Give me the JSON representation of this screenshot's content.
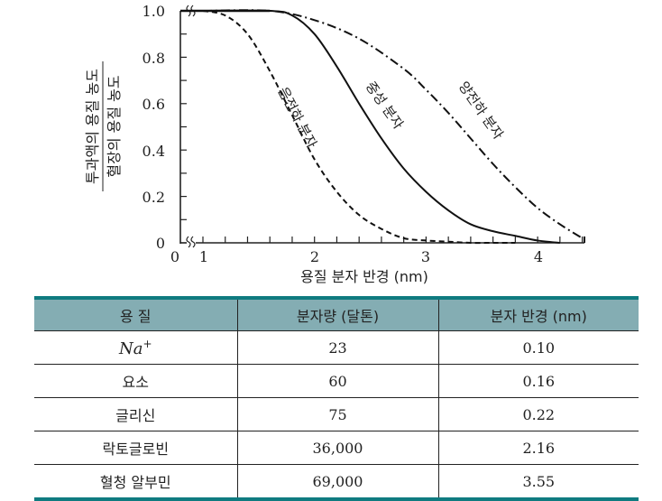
{
  "chart_data": {
    "type": "line",
    "title": "",
    "xlabel": "용질 분자 반경 (nm)",
    "ylabel_numerator": "투과액의 용질 농도",
    "ylabel_denominator": "혈장의 용질 농도",
    "x_ticks": [
      "0",
      "1",
      "2",
      "3",
      "4"
    ],
    "y_ticks": [
      "0",
      "0.2",
      "0.4",
      "0.6",
      "0.8",
      "1.0"
    ],
    "xlim": [
      0,
      4.4
    ],
    "ylim": [
      0,
      1.0
    ],
    "axis_break": true,
    "grid": false,
    "series": [
      {
        "name": "음전하 분자",
        "style": "dashed",
        "x": [
          1.0,
          1.2,
          1.4,
          1.6,
          1.8,
          2.0,
          2.2,
          2.4,
          2.6,
          2.8,
          3.0,
          3.2,
          3.4,
          3.6,
          3.8
        ],
        "y": [
          1.0,
          0.98,
          0.9,
          0.74,
          0.55,
          0.36,
          0.22,
          0.12,
          0.06,
          0.02,
          0.01,
          0.005,
          0.0,
          0.0,
          0.0
        ]
      },
      {
        "name": "중성 분자",
        "style": "solid",
        "x": [
          1.0,
          1.6,
          1.8,
          2.0,
          2.2,
          2.4,
          2.6,
          2.8,
          3.0,
          3.2,
          3.4,
          3.6,
          3.8,
          4.0,
          4.2
        ],
        "y": [
          1.0,
          1.0,
          0.98,
          0.9,
          0.76,
          0.6,
          0.45,
          0.32,
          0.22,
          0.14,
          0.08,
          0.05,
          0.03,
          0.01,
          0.0
        ]
      },
      {
        "name": "양전하 분자",
        "style": "dash-dot",
        "x": [
          1.0,
          1.6,
          2.0,
          2.4,
          2.8,
          3.0,
          3.2,
          3.4,
          3.6,
          3.8,
          4.0,
          4.2,
          4.4
        ],
        "y": [
          1.0,
          1.0,
          0.96,
          0.88,
          0.75,
          0.66,
          0.56,
          0.45,
          0.34,
          0.24,
          0.15,
          0.08,
          0.02
        ]
      }
    ]
  },
  "table": {
    "headers": [
      "용 질",
      "분자량 (달톤)",
      "분자 반경 (nm)"
    ],
    "rows": [
      {
        "solute": "Na",
        "solute_sup": "+",
        "mw": "23",
        "radius": "0.10"
      },
      {
        "solute": "요소",
        "mw": "60",
        "radius": "0.16"
      },
      {
        "solute": "글리신",
        "mw": "75",
        "radius": "0.22"
      },
      {
        "solute": "락토글로빈",
        "mw": "36,000",
        "radius": "2.16"
      },
      {
        "solute": "혈청 알부민",
        "mw": "69,000",
        "radius": "3.55"
      }
    ],
    "colors": {
      "header_bg": "#84adb3",
      "border_accent": "#0f7b80"
    }
  }
}
